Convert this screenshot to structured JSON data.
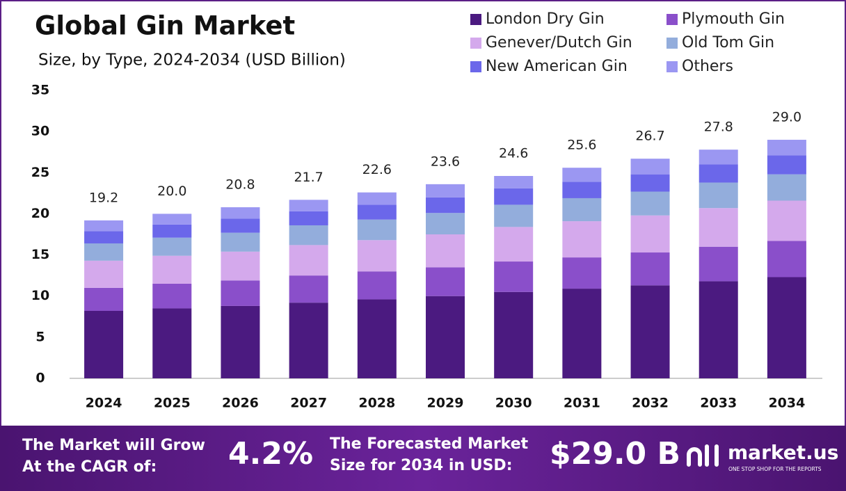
{
  "chart_data": {
    "type": "stacked_bar",
    "title": "Global Gin Market",
    "subtitle": "Size, by Type, 2024-2034 (USD Billion)",
    "categories": [
      "2024",
      "2025",
      "2026",
      "2027",
      "2028",
      "2029",
      "2030",
      "2031",
      "2032",
      "2033",
      "2034"
    ],
    "series": [
      {
        "name": "London Dry Gin",
        "color": "#4b1a80",
        "values": [
          8.2,
          8.5,
          8.8,
          9.2,
          9.6,
          10.0,
          10.5,
          10.9,
          11.3,
          11.8,
          12.3
        ]
      },
      {
        "name": "Plymouth Gin",
        "color": "#8a4fca",
        "values": [
          2.8,
          3.0,
          3.1,
          3.3,
          3.4,
          3.5,
          3.7,
          3.8,
          4.0,
          4.2,
          4.4
        ]
      },
      {
        "name": "Genever/Dutch Gin",
        "color": "#d4a9ec",
        "values": [
          3.3,
          3.4,
          3.5,
          3.7,
          3.8,
          4.0,
          4.2,
          4.4,
          4.5,
          4.7,
          4.9
        ]
      },
      {
        "name": "Old Tom Gin",
        "color": "#93addc",
        "values": [
          2.1,
          2.2,
          2.3,
          2.4,
          2.5,
          2.6,
          2.7,
          2.8,
          2.9,
          3.1,
          3.2
        ]
      },
      {
        "name": "New American Gin",
        "color": "#6b67ea",
        "values": [
          1.5,
          1.6,
          1.7,
          1.7,
          1.8,
          1.9,
          2.0,
          2.0,
          2.1,
          2.2,
          2.3
        ]
      },
      {
        "name": "Others",
        "color": "#9b97f2",
        "values": [
          1.3,
          1.3,
          1.4,
          1.4,
          1.5,
          1.6,
          1.5,
          1.7,
          1.9,
          1.8,
          1.9
        ]
      }
    ],
    "totals": [
      19.2,
      20.0,
      20.8,
      21.7,
      22.6,
      23.6,
      24.6,
      25.6,
      26.7,
      27.8,
      29.0
    ],
    "total_labels": [
      "19.2",
      "20.0",
      "20.8",
      "21.7",
      "22.6",
      "23.6",
      "24.6",
      "25.6",
      "26.7",
      "27.8",
      "29.0"
    ],
    "ylim": [
      0,
      35
    ],
    "yticks": [
      0,
      5,
      10,
      15,
      20,
      25,
      30,
      35
    ],
    "grid": false
  },
  "footer": {
    "cagr_lines": [
      "The Market will Grow",
      "At the CAGR of:"
    ],
    "cagr": "4.2%",
    "forecast_lines": [
      "The Forecasted Market",
      "Size for 2034 in USD:"
    ],
    "forecast": "$29.0 B",
    "brand": "market.us",
    "tagline": "ONE STOP SHOP FOR THE REPORTS"
  }
}
